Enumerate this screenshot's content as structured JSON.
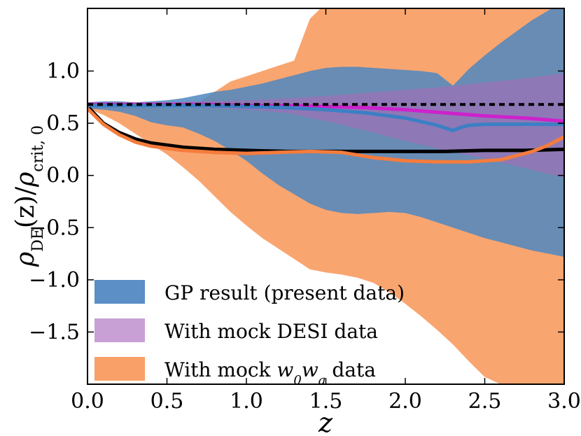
{
  "chart_data": {
    "type": "area",
    "xlabel": "z",
    "ylabel": "ρDE(z)/ρcrit,0",
    "ylabel_parts": {
      "main_left": "ρ",
      "sub_left": "DE",
      "paren": "(z)/",
      "main_right": "ρ",
      "sub_right": "crit, 0"
    },
    "xlim": [
      0.0,
      3.0
    ],
    "ylim": [
      -2.0,
      1.6
    ],
    "x_ticks": [
      0.0,
      0.5,
      1.0,
      1.5,
      2.0,
      2.5,
      3.0
    ],
    "x_tick_labels": [
      "0.0",
      "0.5",
      "1.0",
      "1.5",
      "2.0",
      "2.5",
      "3.0"
    ],
    "y_ticks": [
      1.0,
      0.5,
      0.0,
      -0.5,
      -1.0,
      -1.5
    ],
    "y_tick_labels": [
      "1.0",
      "0.5",
      "0.0",
      "−0.5",
      "−1.0",
      "−1.5"
    ],
    "grid": false,
    "legend_position": "bottom-left",
    "legend": [
      {
        "label": "GP result (present data)",
        "color": "#5b8fc6"
      },
      {
        "label": "With mock DESI data",
        "color": "#c9a0d6"
      },
      {
        "label": "With mock ",
        "label_math": "w0wa",
        "label_end": " data",
        "color": "#f9a068"
      }
    ],
    "bands": [
      {
        "name": "GP result (present data)",
        "color": "#4f87c0",
        "x": [
          0.0,
          0.1,
          0.2,
          0.3,
          0.4,
          0.5,
          0.6,
          0.7,
          0.8,
          0.9,
          1.0,
          1.1,
          1.2,
          1.3,
          1.4,
          1.5,
          1.6,
          1.7,
          1.8,
          1.9,
          2.0,
          2.1,
          2.2,
          2.3,
          2.4,
          2.5,
          2.6,
          2.7,
          2.8,
          2.9,
          3.0
        ],
        "upper": [
          0.7,
          0.71,
          0.71,
          0.7,
          0.71,
          0.72,
          0.74,
          0.77,
          0.8,
          0.82,
          0.85,
          0.88,
          0.92,
          0.96,
          1.0,
          1.03,
          1.04,
          1.04,
          1.03,
          1.02,
          1.01,
          1.0,
          0.98,
          0.86,
          1.02,
          1.15,
          1.27,
          1.38,
          1.49,
          1.58,
          1.67
        ],
        "lower": [
          0.64,
          0.63,
          0.61,
          0.57,
          0.51,
          0.48,
          0.46,
          0.4,
          0.33,
          0.24,
          0.14,
          0.02,
          -0.09,
          -0.18,
          -0.27,
          -0.33,
          -0.36,
          -0.37,
          -0.36,
          -0.35,
          -0.36,
          -0.4,
          -0.45,
          -0.5,
          -0.55,
          -0.6,
          -0.64,
          -0.68,
          -0.72,
          -0.75,
          -0.78
        ]
      },
      {
        "name": "With mock DESI data",
        "color": "#9e6fb6",
        "x": [
          0.0,
          0.25,
          0.5,
          0.75,
          1.0,
          1.25,
          1.5,
          1.75,
          2.0,
          2.25,
          2.5,
          2.75,
          3.0
        ],
        "upper": [
          0.7,
          0.7,
          0.7,
          0.71,
          0.72,
          0.74,
          0.76,
          0.79,
          0.82,
          0.85,
          0.89,
          0.93,
          0.98
        ],
        "lower": [
          0.66,
          0.66,
          0.66,
          0.65,
          0.63,
          0.6,
          0.52,
          0.43,
          0.33,
          0.24,
          0.16,
          0.07,
          -0.02
        ]
      },
      {
        "name": "With mock w0wa data",
        "color": "#f9a068",
        "x": [
          0.0,
          0.1,
          0.2,
          0.3,
          0.4,
          0.5,
          0.6,
          0.7,
          0.8,
          0.9,
          1.0,
          1.1,
          1.2,
          1.3,
          1.4,
          1.5,
          1.6,
          1.7,
          1.8,
          1.9,
          2.0,
          2.1,
          2.2,
          2.3,
          2.4,
          2.5,
          2.6,
          2.7,
          2.8,
          2.9,
          3.0
        ],
        "upper": [
          0.7,
          0.7,
          0.69,
          0.68,
          0.67,
          0.65,
          0.66,
          0.7,
          0.8,
          0.9,
          0.95,
          1.0,
          1.05,
          1.1,
          1.5,
          1.65,
          1.67,
          1.67,
          1.67,
          1.67,
          1.67,
          1.67,
          1.67,
          1.67,
          1.67,
          1.67,
          1.67,
          1.67,
          1.67,
          1.67,
          1.67
        ],
        "lower": [
          0.64,
          0.58,
          0.5,
          0.4,
          0.3,
          0.2,
          0.08,
          -0.05,
          -0.2,
          -0.35,
          -0.48,
          -0.6,
          -0.7,
          -0.8,
          -0.9,
          -0.93,
          -0.95,
          -0.98,
          -1.03,
          -1.12,
          -1.23,
          -1.35,
          -1.48,
          -1.62,
          -1.78,
          -1.93,
          -2.0,
          -2.0,
          -2.0,
          -2.0,
          -2.0
        ]
      }
    ],
    "series": [
      {
        "name": "",
        "color": "#000000",
        "style": "dashed",
        "x": [
          0.0,
          3.0
        ],
        "y": [
          0.68,
          0.68
        ]
      },
      {
        "name": "",
        "color": "#000000",
        "style": "solid",
        "x": [
          0.0,
          0.1,
          0.2,
          0.3,
          0.4,
          0.5,
          0.6,
          0.8,
          1.0,
          1.25,
          1.5,
          1.75,
          2.0,
          2.25,
          2.5,
          2.75,
          3.0
        ],
        "y": [
          0.66,
          0.5,
          0.41,
          0.35,
          0.31,
          0.29,
          0.27,
          0.25,
          0.24,
          0.23,
          0.23,
          0.23,
          0.23,
          0.23,
          0.24,
          0.24,
          0.25
        ]
      },
      {
        "name": "",
        "color": "#cc22cc",
        "style": "solid",
        "x": [
          0.0,
          0.25,
          0.5,
          0.75,
          1.0,
          1.25,
          1.5,
          1.75,
          2.0,
          2.25,
          2.5,
          2.75,
          3.0
        ],
        "y": [
          0.68,
          0.68,
          0.68,
          0.68,
          0.67,
          0.67,
          0.66,
          0.65,
          0.63,
          0.6,
          0.57,
          0.55,
          0.52
        ]
      },
      {
        "name": "",
        "color": "#3c7fc4",
        "style": "solid",
        "x": [
          0.0,
          0.25,
          0.5,
          0.75,
          1.0,
          1.25,
          1.5,
          1.75,
          2.0,
          2.2,
          2.3,
          2.35,
          2.4,
          2.5,
          2.75,
          3.0
        ],
        "y": [
          0.67,
          0.67,
          0.67,
          0.67,
          0.66,
          0.65,
          0.63,
          0.6,
          0.55,
          0.48,
          0.43,
          0.46,
          0.48,
          0.49,
          0.49,
          0.49
        ]
      },
      {
        "name": "",
        "color": "#f57c3c",
        "style": "solid",
        "x": [
          0.0,
          0.1,
          0.2,
          0.3,
          0.4,
          0.5,
          0.6,
          0.8,
          1.0,
          1.2,
          1.4,
          1.6,
          1.8,
          2.0,
          2.2,
          2.4,
          2.6,
          2.8,
          2.9,
          3.0
        ],
        "y": [
          0.64,
          0.49,
          0.39,
          0.32,
          0.28,
          0.26,
          0.24,
          0.22,
          0.21,
          0.22,
          0.23,
          0.22,
          0.17,
          0.14,
          0.13,
          0.13,
          0.15,
          0.23,
          0.29,
          0.37
        ]
      }
    ]
  }
}
